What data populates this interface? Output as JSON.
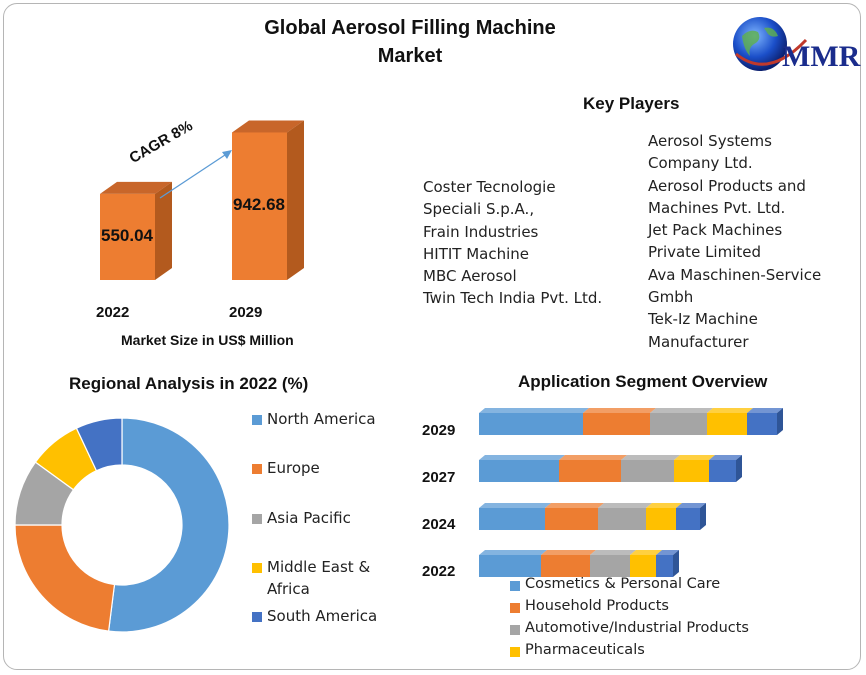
{
  "title": "Global Aerosol Filling Machine Market",
  "title_lines": [
    "Global Aerosol Filling Machine",
    "Market"
  ],
  "logo": {
    "text": "MMR",
    "icon": "globe-icon"
  },
  "key_players": {
    "title": "Key Players",
    "left": [
      "Coster Tecnologie",
      "Speciali S.p.A.,",
      "Frain Industries",
      "HITIT Machine",
      "MBC Aerosol",
      "Twin Tech India Pvt. Ltd."
    ],
    "right": [
      "Aerosol Systems",
      "Company Ltd.",
      "Aerosol Products and",
      "Machines Pvt. Ltd.",
      "Jet Pack Machines",
      "Private Limited",
      "Ava Maschinen-Service",
      "Gmbh",
      "Tek-Iz Machine",
      "Manufacturer"
    ]
  },
  "colors": {
    "orange": "#ED7D31",
    "orange_dark": "#B35A1E",
    "blue": "#5B9BD5",
    "gray": "#A5A5A5",
    "yellow": "#FFC000",
    "navy": "#4472C4"
  },
  "chart_data": [
    {
      "type": "bar",
      "title": "",
      "xlabel": "Market Size in US$ Million",
      "ylabel": "",
      "categories": [
        "2022",
        "2029"
      ],
      "values": [
        550.04,
        942.68
      ],
      "value_labels": [
        "550.04",
        "942.68"
      ],
      "annotation": "CAGR 8%",
      "ylim": [
        0,
        1000
      ]
    },
    {
      "type": "pie",
      "title": "Regional Analysis in 2022 (%)",
      "style": "donut",
      "labels": [
        "North America",
        "Europe",
        "Asia Pacific",
        "Middle East & Africa",
        "South America"
      ],
      "legend_lines": [
        [
          "North America"
        ],
        [
          "Europe"
        ],
        [
          "Asia Pacific"
        ],
        [
          "Middle East &",
          "Africa"
        ],
        [
          "South America"
        ]
      ],
      "values": [
        52,
        23,
        10,
        8,
        7
      ],
      "colors": [
        "#5B9BD5",
        "#ED7D31",
        "#A5A5A5",
        "#FFC000",
        "#4472C4"
      ],
      "legend": "right"
    },
    {
      "type": "bar",
      "orientation": "horizontal",
      "stacked": true,
      "title": "Application Segment Overview",
      "categories": [
        "2029",
        "2027",
        "2024",
        "2022"
      ],
      "series": [
        {
          "name": "Cosmetics & Personal Care",
          "color": "#5B9BD5",
          "values": [
            104,
            80,
            66,
            62
          ]
        },
        {
          "name": "Household Products",
          "color": "#ED7D31",
          "values": [
            67,
            62,
            53,
            49
          ]
        },
        {
          "name": "Automotive/Industrial Products",
          "color": "#A5A5A5",
          "values": [
            57,
            53,
            48,
            40
          ]
        },
        {
          "name": "Pharmaceuticals",
          "color": "#FFC000",
          "values": [
            40,
            35,
            30,
            26
          ]
        },
        {
          "name": "",
          "color": "#4472C4",
          "values": [
            30,
            27,
            24,
            17
          ]
        }
      ],
      "legend": "bottom"
    }
  ]
}
